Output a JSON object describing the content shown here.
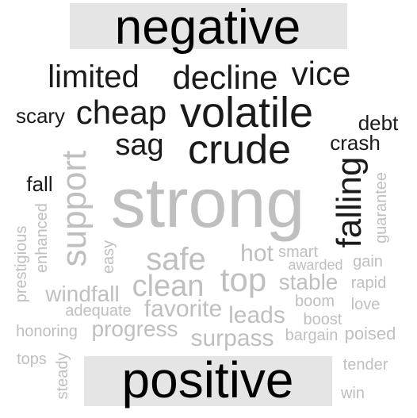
{
  "header": {
    "label": "negative"
  },
  "footer": {
    "label": "positive"
  },
  "colors": {
    "negative": "#1a1a1a",
    "positive": "#bfbfbf",
    "panel": "#e5e5e5",
    "label": "#000000"
  },
  "negative_words": [
    "limited",
    "decline",
    "vice",
    "scary",
    "cheap",
    "volatile",
    "debt",
    "sag",
    "crude",
    "crash",
    "fall",
    "falling"
  ],
  "positive_words": [
    "strong",
    "support",
    "guarantee",
    "safe",
    "hot",
    "smart",
    "awarded",
    "gain",
    "prestigious",
    "enhanced",
    "easy",
    "top",
    "clean",
    "stable",
    "rapid",
    "windfall",
    "boom",
    "love",
    "adequate",
    "favorite",
    "leads",
    "boost",
    "honoring",
    "progress",
    "surpass",
    "bargain",
    "poised",
    "tops",
    "steady",
    "tender",
    "win"
  ]
}
